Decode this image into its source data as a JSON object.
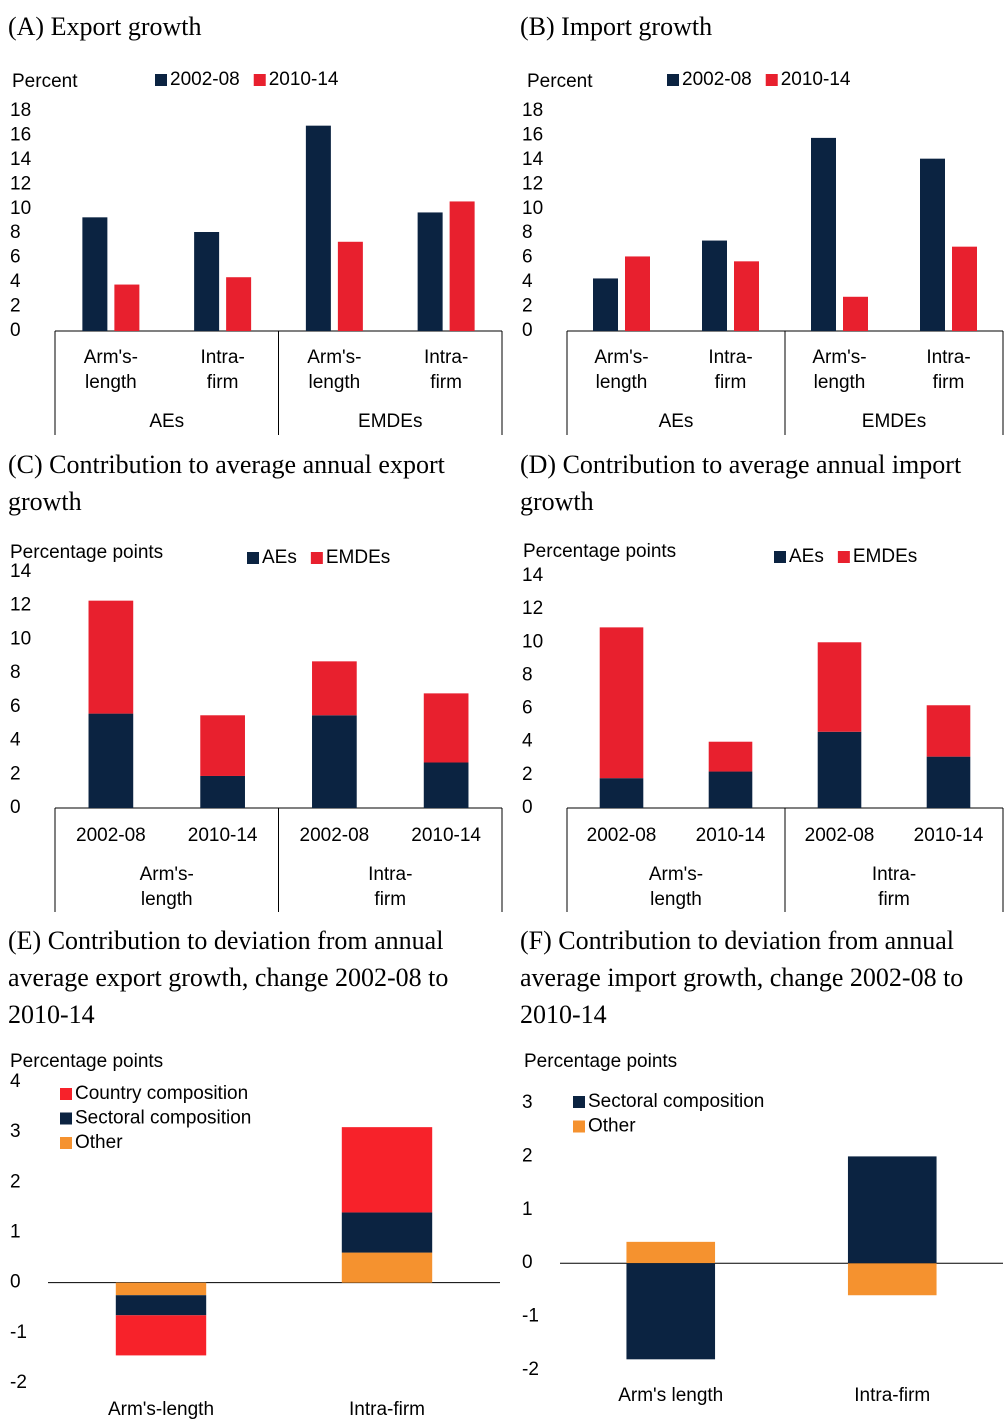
{
  "chart_data": [
    {
      "type": "bar",
      "title": "(A) Export growth",
      "y_label": "Percent",
      "categories": [
        "Arm's-length",
        "Intra-firm",
        "Arm's-length",
        "Intra-firm"
      ],
      "groups": [
        "AEs",
        "EMDEs"
      ],
      "series": [
        {
          "name": "2002-08",
          "color": "#0b2341",
          "values": [
            9.3,
            8.1,
            16.8,
            9.7
          ]
        },
        {
          "name": "2010-14",
          "color": "#e8202e",
          "values": [
            3.8,
            4.4,
            7.3,
            10.6
          ]
        }
      ],
      "ylim": [
        0,
        18
      ],
      "yticks": [
        0,
        2,
        4,
        6,
        8,
        10,
        12,
        14,
        16,
        18
      ],
      "legend_position": "top"
    },
    {
      "type": "bar",
      "title": "(B) Import growth",
      "y_label": "Percent",
      "categories": [
        "Arm's-length",
        "Intra-firm",
        "Arm's-length",
        "Intra-firm"
      ],
      "groups": [
        "AEs",
        "EMDEs"
      ],
      "series": [
        {
          "name": "2002-08",
          "color": "#0b2341",
          "values": [
            4.3,
            7.4,
            15.8,
            14.1
          ]
        },
        {
          "name": "2010-14",
          "color": "#e8202e",
          "values": [
            6.1,
            5.7,
            2.8,
            6.9
          ]
        }
      ],
      "ylim": [
        0,
        18
      ],
      "yticks": [
        0,
        2,
        4,
        6,
        8,
        10,
        12,
        14,
        16,
        18
      ],
      "legend_position": "top"
    },
    {
      "type": "stacked_bar",
      "title": "(C) Contribution to average annual export growth",
      "y_label": "Percentage points",
      "categories": [
        "2002-08",
        "2010-14",
        "2002-08",
        "2010-14"
      ],
      "groups": [
        "Arm's-length",
        "Intra-firm"
      ],
      "series": [
        {
          "name": "AEs",
          "color": "#0b2341",
          "values": [
            5.6,
            1.9,
            5.5,
            2.7
          ]
        },
        {
          "name": "EMDEs",
          "color": "#e8202e",
          "values": [
            6.7,
            3.6,
            3.2,
            4.1
          ]
        }
      ],
      "ylim": [
        0,
        14
      ],
      "yticks": [
        0,
        2,
        4,
        6,
        8,
        10,
        12,
        14
      ],
      "legend_position": "top"
    },
    {
      "type": "stacked_bar",
      "title": "(D) Contribution to average annual import growth",
      "y_label": "Percentage points",
      "categories": [
        "2002-08",
        "2010-14",
        "2002-08",
        "2010-14"
      ],
      "groups": [
        "Arm's-length",
        "Intra-firm"
      ],
      "series": [
        {
          "name": "AEs",
          "color": "#0b2341",
          "values": [
            1.8,
            2.2,
            4.6,
            3.1
          ]
        },
        {
          "name": "EMDEs",
          "color": "#e8202e",
          "values": [
            9.1,
            1.8,
            5.4,
            3.1
          ]
        }
      ],
      "ylim": [
        0,
        14
      ],
      "yticks": [
        0,
        2,
        4,
        6,
        8,
        10,
        12,
        14
      ],
      "legend_position": "top"
    },
    {
      "type": "stacked_bar",
      "title": "(E) Contribution to deviation from annual average export growth, change 2002-08 to 2010-14",
      "y_label": "Percentage points",
      "categories": [
        "Arm's-length",
        "Intra-firm"
      ],
      "series": [
        {
          "name": "Other",
          "color": "#f5922f",
          "values": [
            -0.25,
            0.6
          ]
        },
        {
          "name": "Sectoral composition",
          "color": "#0b2341",
          "values": [
            -0.4,
            0.8
          ]
        },
        {
          "name": "Country composition",
          "color": "#f7222a",
          "values": [
            -0.8,
            1.7
          ]
        }
      ],
      "ylim": [
        -2,
        4
      ],
      "yticks": [
        -2,
        -1,
        0,
        1,
        2,
        3,
        4
      ],
      "legend_position": "upper left",
      "legend_order": "reversed"
    },
    {
      "type": "stacked_bar",
      "title": "(F) Contribution to deviation from annual average import growth, change 2002-08 to 2010-14",
      "y_label": "Percentage points",
      "categories": [
        "Arm's length",
        "Intra-firm"
      ],
      "series": [
        {
          "name": "Other",
          "color": "#f5922f",
          "values": [
            0.4,
            -0.6
          ]
        },
        {
          "name": "Sectoral composition",
          "color": "#0b2341",
          "values": [
            -1.8,
            2.0
          ]
        }
      ],
      "ylim": [
        -2,
        3
      ],
      "yticks": [
        -2,
        -1,
        0,
        1,
        2,
        3
      ],
      "legend_position": "upper left",
      "legend_order": "reversed"
    }
  ]
}
